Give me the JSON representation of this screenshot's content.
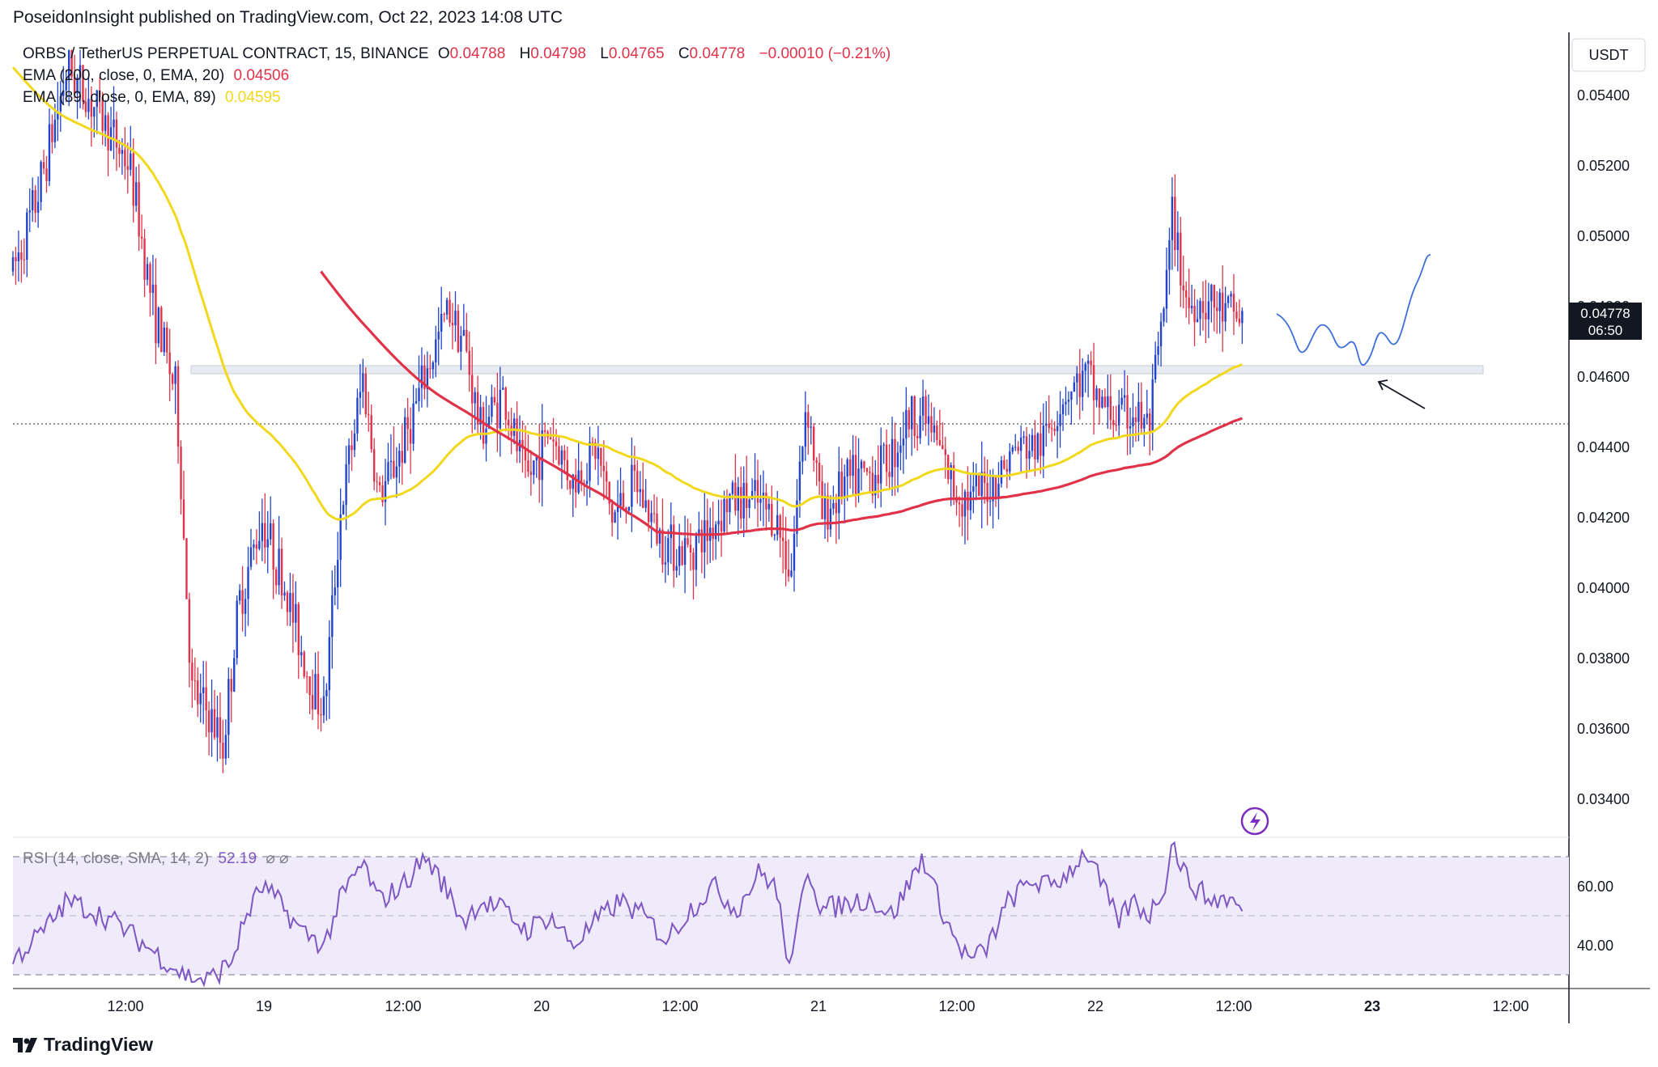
{
  "header": {
    "published": "PoseidonInsight published on TradingView.com, Oct 22, 2023 14:08 UTC"
  },
  "legend": {
    "symbol": "ORBS / TetherUS PERPETUAL CONTRACT, 15, BINANCE",
    "o_label": "O",
    "o_value": "0.04788",
    "h_label": "H",
    "h_value": "0.04798",
    "l_label": "L",
    "l_value": "0.04765",
    "c_label": "C",
    "c_value": "0.04778",
    "change": "−0.00010 (−0.21%)",
    "ema200_label": "EMA (200, close, 0, EMA, 20)",
    "ema200_value": "0.04506",
    "ema89_label": "EMA (89, close, 0, EMA, 89)",
    "ema89_value": "0.04595",
    "rsi_label": "RSI (14, close, SMA, 14, 2)",
    "rsi_value": "52.19",
    "rsi_extra": "⌀ ⌀"
  },
  "price_axis": {
    "currency": "USDT",
    "ticks": [
      "0.05400",
      "0.05200",
      "0.05000",
      "0.04800",
      "0.04600",
      "0.04400",
      "0.04200",
      "0.04000",
      "0.03800",
      "0.03600",
      "0.03400"
    ],
    "current_price": "0.04778",
    "countdown": "06:50"
  },
  "rsi_axis": {
    "ticks": [
      "60.00",
      "40.00"
    ]
  },
  "time_axis": {
    "ticks": [
      "12:00",
      "19",
      "12:00",
      "20",
      "12:00",
      "21",
      "12:00",
      "22",
      "12:00",
      "23",
      "12:00"
    ],
    "bold": [
      "19",
      "20",
      "21",
      "22",
      "23"
    ]
  },
  "footer": {
    "brand": "TradingView"
  },
  "colors": {
    "up": "#2244cc",
    "down": "#e0334a",
    "ema200": "#e0334a",
    "ema89": "#f2d81c",
    "rsi": "#7e57c2",
    "rsi_band": "#efebfa",
    "zone": "#e7eaf2",
    "forecast": "#3d6fd8"
  },
  "icons": {
    "flash": "lightning-icon",
    "logo": "tradingview-logo-icon"
  },
  "chart_data": {
    "type": "candlestick",
    "interval": "15",
    "symbol": "ORBS/USDT",
    "ylim": [
      0.0334,
      0.0554
    ],
    "x_ticks": [
      "12:00",
      "19",
      "12:00",
      "20",
      "12:00",
      "21",
      "12:00",
      "22",
      "12:00",
      "23",
      "12:00"
    ],
    "current_price": 0.04778,
    "ohlc_last": {
      "open": 0.04788,
      "high": 0.04798,
      "low": 0.04765,
      "close": 0.04778
    },
    "ema200_last": 0.04506,
    "ema89_last": 0.04595,
    "rsi_last": 52.19,
    "rsi_bands": [
      70,
      50,
      30
    ],
    "resistance_zone": [
      0.04615,
      0.04635
    ],
    "price_path": [
      [
        0,
        0.049
      ],
      [
        0.015,
        0.051
      ],
      [
        0.035,
        0.0548
      ],
      [
        0.055,
        0.0535
      ],
      [
        0.075,
        0.052
      ],
      [
        0.09,
        0.048
      ],
      [
        0.105,
        0.0455
      ],
      [
        0.115,
        0.037
      ],
      [
        0.125,
        0.0365
      ],
      [
        0.135,
        0.0355
      ],
      [
        0.145,
        0.0395
      ],
      [
        0.16,
        0.042
      ],
      [
        0.175,
        0.04
      ],
      [
        0.19,
        0.0375
      ],
      [
        0.2,
        0.0365
      ],
      [
        0.21,
        0.042
      ],
      [
        0.225,
        0.046
      ],
      [
        0.235,
        0.0425
      ],
      [
        0.25,
        0.044
      ],
      [
        0.265,
        0.046
      ],
      [
        0.28,
        0.048
      ],
      [
        0.29,
        0.047
      ],
      [
        0.3,
        0.0445
      ],
      [
        0.315,
        0.0455
      ],
      [
        0.33,
        0.043
      ],
      [
        0.345,
        0.0445
      ],
      [
        0.36,
        0.043
      ],
      [
        0.375,
        0.044
      ],
      [
        0.385,
        0.042
      ],
      [
        0.4,
        0.043
      ],
      [
        0.415,
        0.0415
      ],
      [
        0.43,
        0.041
      ],
      [
        0.445,
        0.0415
      ],
      [
        0.46,
        0.0425
      ],
      [
        0.475,
        0.0425
      ],
      [
        0.49,
        0.042
      ],
      [
        0.5,
        0.0405
      ],
      [
        0.51,
        0.0455
      ],
      [
        0.52,
        0.042
      ],
      [
        0.535,
        0.043
      ],
      [
        0.55,
        0.0432
      ],
      [
        0.565,
        0.0438
      ],
      [
        0.575,
        0.0448
      ],
      [
        0.585,
        0.045
      ],
      [
        0.595,
        0.044
      ],
      [
        0.605,
        0.0428
      ],
      [
        0.615,
        0.0425
      ],
      [
        0.63,
        0.043
      ],
      [
        0.645,
        0.044
      ],
      [
        0.66,
        0.044
      ],
      [
        0.675,
        0.0455
      ],
      [
        0.69,
        0.046
      ],
      [
        0.7,
        0.0452
      ],
      [
        0.71,
        0.0448
      ],
      [
        0.72,
        0.045
      ],
      [
        0.73,
        0.0445
      ],
      [
        0.74,
        0.048
      ],
      [
        0.745,
        0.0505
      ],
      [
        0.755,
        0.048
      ],
      [
        0.765,
        0.0482
      ],
      [
        0.78,
        0.0478
      ],
      [
        0.79,
        0.0477
      ]
    ],
    "rsi_path": [
      [
        0,
        35
      ],
      [
        0.02,
        45
      ],
      [
        0.035,
        55
      ],
      [
        0.05,
        52
      ],
      [
        0.065,
        48
      ],
      [
        0.08,
        42
      ],
      [
        0.095,
        36
      ],
      [
        0.11,
        30
      ],
      [
        0.125,
        28
      ],
      [
        0.14,
        34
      ],
      [
        0.15,
        50
      ],
      [
        0.16,
        60
      ],
      [
        0.17,
        55
      ],
      [
        0.185,
        45
      ],
      [
        0.2,
        40
      ],
      [
        0.21,
        55
      ],
      [
        0.225,
        68
      ],
      [
        0.235,
        55
      ],
      [
        0.25,
        60
      ],
      [
        0.265,
        70
      ],
      [
        0.275,
        62
      ],
      [
        0.29,
        48
      ],
      [
        0.3,
        55
      ],
      [
        0.315,
        52
      ],
      [
        0.33,
        45
      ],
      [
        0.345,
        50
      ],
      [
        0.36,
        40
      ],
      [
        0.375,
        48
      ],
      [
        0.39,
        55
      ],
      [
        0.405,
        50
      ],
      [
        0.42,
        42
      ],
      [
        0.435,
        52
      ],
      [
        0.45,
        60
      ],
      [
        0.465,
        52
      ],
      [
        0.48,
        65
      ],
      [
        0.49,
        60
      ],
      [
        0.5,
        30
      ],
      [
        0.51,
        68
      ],
      [
        0.52,
        52
      ],
      [
        0.535,
        54
      ],
      [
        0.55,
        56
      ],
      [
        0.565,
        50
      ],
      [
        0.575,
        60
      ],
      [
        0.585,
        70
      ],
      [
        0.595,
        55
      ],
      [
        0.605,
        42
      ],
      [
        0.615,
        35
      ],
      [
        0.625,
        38
      ],
      [
        0.64,
        55
      ],
      [
        0.655,
        62
      ],
      [
        0.665,
        60
      ],
      [
        0.675,
        63
      ],
      [
        0.69,
        72
      ],
      [
        0.7,
        60
      ],
      [
        0.71,
        48
      ],
      [
        0.72,
        55
      ],
      [
        0.73,
        50
      ],
      [
        0.74,
        60
      ],
      [
        0.745,
        75
      ],
      [
        0.755,
        62
      ],
      [
        0.77,
        55
      ],
      [
        0.78,
        56
      ],
      [
        0.79,
        52
      ]
    ]
  }
}
